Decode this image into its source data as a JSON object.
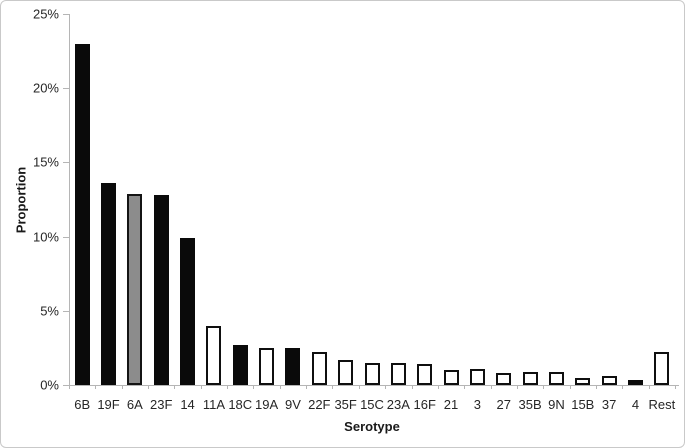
{
  "chart_data": {
    "type": "bar",
    "title": "",
    "xlabel": "Serotype",
    "ylabel": "Proportion",
    "ylim": [
      0,
      25
    ],
    "grid": false,
    "legend": null,
    "y_ticks": [
      0,
      5,
      10,
      15,
      20,
      25
    ],
    "y_tick_labels": [
      "0%",
      "5%",
      "10%",
      "15%",
      "20%",
      "25%"
    ],
    "categories": [
      "6B",
      "19F",
      "6A",
      "23F",
      "14",
      "11A",
      "18C",
      "19A",
      "9V",
      "22F",
      "35F",
      "15C",
      "23A",
      "16F",
      "21",
      "3",
      "27",
      "35B",
      "9N",
      "15B",
      "37",
      "4",
      "Rest"
    ],
    "values": [
      23.0,
      13.6,
      12.9,
      12.8,
      9.9,
      4.0,
      2.7,
      2.5,
      2.5,
      2.2,
      1.7,
      1.5,
      1.5,
      1.4,
      1.0,
      1.1,
      0.8,
      0.85,
      0.85,
      0.5,
      0.6,
      0.35,
      2.2
    ],
    "bar_fills": [
      "black",
      "black",
      "gray",
      "black",
      "black",
      "white",
      "black",
      "white",
      "black",
      "white",
      "white",
      "white",
      "white",
      "white",
      "white",
      "white",
      "white",
      "white",
      "white",
      "white",
      "white",
      "black",
      "white"
    ],
    "colors": {
      "bar_black": "#0a0a0a",
      "bar_gray": "#8c8c8c",
      "bar_white": "#ffffff",
      "bar_border": "#0f0f0f",
      "axis_line": "#b5b5b5",
      "tick_text": "#262626",
      "title_text": "#1a1a1a",
      "figure_border": "#c9c9c9",
      "background": "#ffffff"
    }
  }
}
